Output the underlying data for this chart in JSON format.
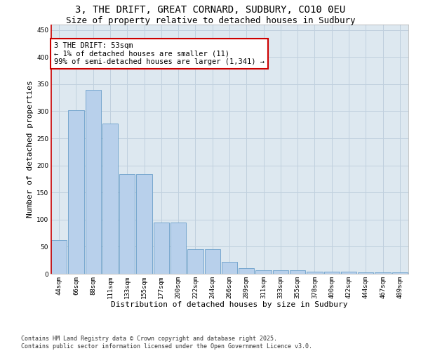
{
  "title1": "3, THE DRIFT, GREAT CORNARD, SUDBURY, CO10 0EU",
  "title2": "Size of property relative to detached houses in Sudbury",
  "xlabel": "Distribution of detached houses by size in Sudbury",
  "ylabel": "Number of detached properties",
  "bins": [
    "44sqm",
    "66sqm",
    "88sqm",
    "111sqm",
    "133sqm",
    "155sqm",
    "177sqm",
    "200sqm",
    "222sqm",
    "244sqm",
    "266sqm",
    "289sqm",
    "311sqm",
    "333sqm",
    "355sqm",
    "378sqm",
    "400sqm",
    "422sqm",
    "444sqm",
    "467sqm",
    "489sqm"
  ],
  "values": [
    62,
    302,
    340,
    277,
    184,
    184,
    95,
    95,
    45,
    45,
    22,
    11,
    7,
    6,
    6,
    4,
    4,
    4,
    3,
    3,
    3
  ],
  "bar_color": "#b8d0eb",
  "bar_edge_color": "#6a9fca",
  "annotation_box_color": "#ffffff",
  "annotation_border_color": "#cc0000",
  "annotation_text": "3 THE DRIFT: 53sqm\n← 1% of detached houses are smaller (11)\n99% of semi-detached houses are larger (1,341) →",
  "ylim": [
    0,
    460
  ],
  "yticks": [
    0,
    50,
    100,
    150,
    200,
    250,
    300,
    350,
    400,
    450
  ],
  "footer1": "Contains HM Land Registry data © Crown copyright and database right 2025.",
  "footer2": "Contains public sector information licensed under the Open Government Licence v3.0.",
  "bg_color": "#ffffff",
  "plot_bg_color": "#dde8f0",
  "grid_color": "#c0d0de",
  "title1_fontsize": 10,
  "title2_fontsize": 9,
  "xlabel_fontsize": 8,
  "ylabel_fontsize": 8,
  "tick_fontsize": 6.5,
  "annotation_fontsize": 7.5,
  "footer_fontsize": 6
}
